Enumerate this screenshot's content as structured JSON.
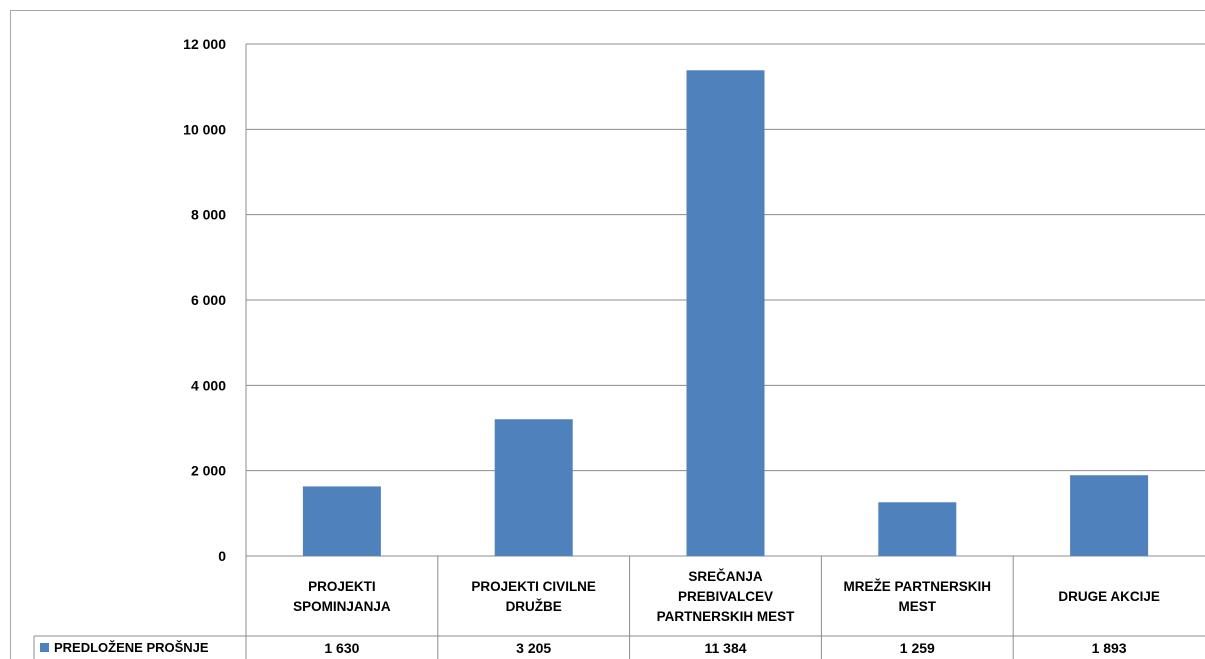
{
  "chart_data": {
    "type": "bar",
    "categories": [
      [
        "PROJEKTI",
        "SPOMINJANJA"
      ],
      [
        "PROJEKTI CIVILNE",
        "DRUŽBE"
      ],
      [
        "SREČANJA",
        "PREBIVALCEV",
        "PARTNERSKIH MEST"
      ],
      [
        "MREŽE PARTNERSKIH",
        "MEST"
      ],
      [
        "DRUGE AKCIJE"
      ]
    ],
    "series": [
      {
        "name": "PREDLOŽENE PROŠNJE",
        "values": [
          1630,
          3205,
          11384,
          1259,
          1893
        ],
        "value_labels": [
          "1 630",
          "3 205",
          "11 384",
          "1 259",
          "1 893"
        ],
        "color": "#4f81bd"
      }
    ],
    "yticks": [
      {
        "value": 0,
        "label": "0"
      },
      {
        "value": 2000,
        "label": "2 000"
      },
      {
        "value": 4000,
        "label": "4 000"
      },
      {
        "value": 6000,
        "label": "6 000"
      },
      {
        "value": 8000,
        "label": "8 000"
      },
      {
        "value": 10000,
        "label": "10 000"
      },
      {
        "value": 12000,
        "label": "12 000"
      }
    ],
    "ylim": [
      0,
      12000
    ],
    "grid": true,
    "legend": "data-table-left"
  }
}
